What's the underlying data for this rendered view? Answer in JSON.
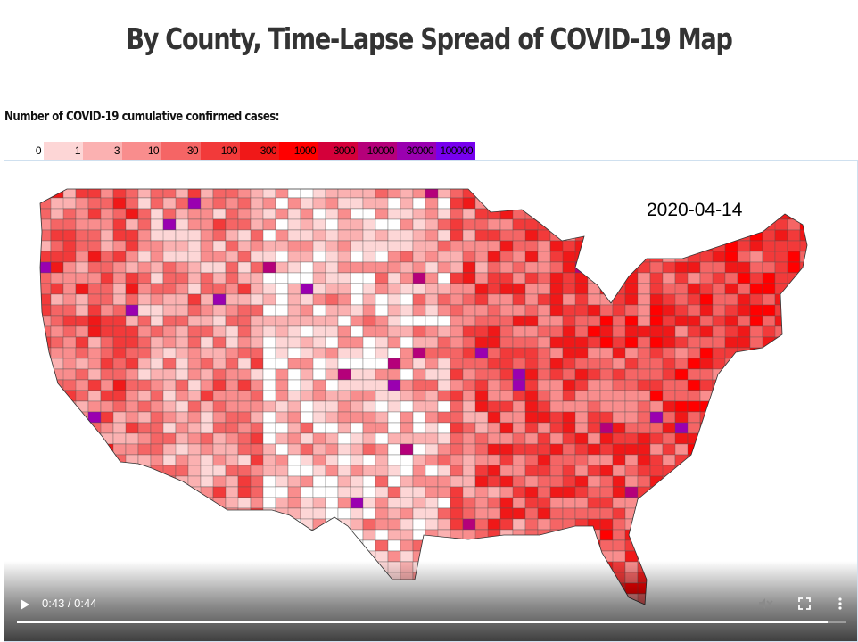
{
  "page": {
    "title": "By County, Time-Lapse Spread of COVID-19 Map"
  },
  "legend": {
    "caption": "Number of COVID-19 cumulative confirmed cases:",
    "bins": [
      {
        "label": "0",
        "color": "#ffffff"
      },
      {
        "label": "1",
        "color": "#fdd6d6"
      },
      {
        "label": "3",
        "color": "#fbb1b1"
      },
      {
        "label": "10",
        "color": "#f98d8d"
      },
      {
        "label": "30",
        "color": "#f56565"
      },
      {
        "label": "100",
        "color": "#f23a3a"
      },
      {
        "label": "300",
        "color": "#f01818"
      },
      {
        "label": "1000",
        "color": "#ff0000"
      },
      {
        "label": "3000",
        "color": "#d4003a"
      },
      {
        "label": "10000",
        "color": "#b5007a"
      },
      {
        "label": "30000",
        "color": "#9a00b0"
      },
      {
        "label": "100000",
        "color": "#7700ee"
      }
    ]
  },
  "map": {
    "date": "2020-04-14"
  },
  "video": {
    "time": "0:43 / 0:44",
    "progress_fraction": 0.977,
    "icons": {
      "play": "play-icon",
      "mute": "muted-speaker-icon",
      "fullscreen": "fullscreen-icon",
      "menu": "more-vert-icon"
    }
  }
}
